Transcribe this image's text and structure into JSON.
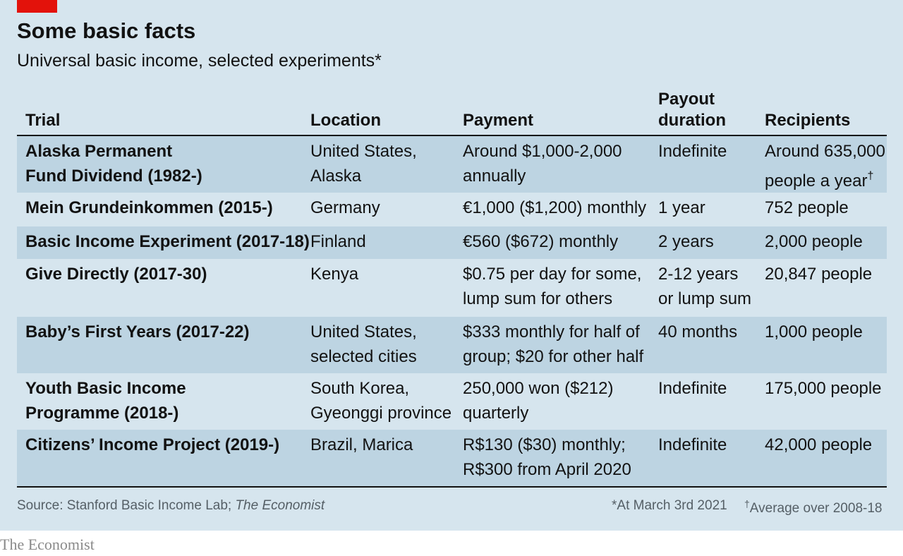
{
  "brand_color": "#e3120b",
  "background_color": "#d6e5ee",
  "row_shade_color": "#bdd4e2",
  "chart_data": {
    "type": "table",
    "title": "Some basic facts",
    "subtitle": "Universal basic income, selected experiments*",
    "columns": [
      "Trial",
      "Location",
      "Payment",
      "Payout\nduration",
      "Recipients"
    ],
    "rows": [
      {
        "trial": "Alaska Permanent\nFund Dividend (1982-)",
        "location": "United States,\nAlaska",
        "payment": "Around $1,000-2,000\nannually",
        "duration": "Indefinite",
        "recipients": "Around 635,000\npeople a year",
        "recipients_mark": "†",
        "shaded": true
      },
      {
        "trial": "Mein Grundeinkommen (2015-)",
        "location": "Germany",
        "payment": "€1,000 ($1,200) monthly",
        "duration": "1 year",
        "recipients": "752 people",
        "shaded": false
      },
      {
        "trial": "Basic Income Experiment (2017-18)",
        "location": "Finland",
        "payment": "€560 ($672) monthly",
        "duration": "2 years",
        "recipients": "2,000 people",
        "shaded": true
      },
      {
        "trial": "Give Directly (2017-30)",
        "location": "Kenya",
        "payment": "$0.75 per day for some,\nlump sum for others",
        "duration": "2-12 years\nor lump sum",
        "recipients": "20,847 people",
        "shaded": false
      },
      {
        "trial": "Baby’s First Years (2017-22)",
        "location": "United States,\nselected cities",
        "payment": "$333 monthly for half of\ngroup; $20 for other half",
        "duration": "40 months",
        "recipients": "1,000 people",
        "shaded": true
      },
      {
        "trial": "Youth Basic Income\nProgramme (2018-)",
        "location": "South Korea,\nGyeonggi province",
        "payment": "250,000 won ($212)\nquarterly",
        "duration": "Indefinite",
        "recipients": "175,000 people",
        "shaded": false
      },
      {
        "trial": "Citizens’ Income Project (2019-)",
        "location": "Brazil, Marica",
        "payment": "R$130 ($30) monthly;\nR$300 from April 2020",
        "duration": "Indefinite",
        "recipients": "42,000 people",
        "shaded": true
      }
    ]
  },
  "footer": {
    "source_prefix": "Source: Stanford Basic Income Lab; ",
    "source_italic": "The Economist",
    "note_1": "*At March 3rd 2021",
    "note_2_mark": "†",
    "note_2": "Average over 2008-18"
  },
  "brand": "The Economist"
}
